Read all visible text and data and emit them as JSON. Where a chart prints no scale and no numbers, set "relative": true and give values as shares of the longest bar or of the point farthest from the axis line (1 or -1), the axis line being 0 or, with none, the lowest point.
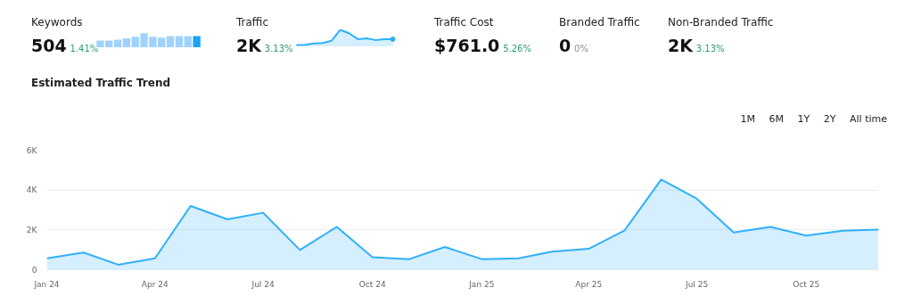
{
  "chart_data": [
    {
      "type": "other",
      "categories": [
        "Keywords",
        "Traffic",
        "Traffic Cost",
        "Branded Traffic",
        "Non-Branded Traffic"
      ],
      "value_labels": [
        "504",
        "2K",
        "$761.0",
        "0",
        "2K"
      ],
      "annotations": [
        "1.41%",
        "3.13%",
        "5.26%",
        "0%",
        "3.13%"
      ],
      "colors": [
        "#2a9d6f",
        "#2a9d6f",
        "#2a9d6f",
        "#8a8f98",
        "#2a9d6f"
      ]
    },
    {
      "type": "bar",
      "relative": true,
      "categories": [
        null,
        null,
        null,
        null,
        null,
        null,
        null,
        null,
        null,
        null,
        null,
        null
      ],
      "values": [
        0.5,
        0.5,
        0.55,
        0.65,
        0.75,
        1.0,
        0.75,
        0.7,
        0.8,
        0.8,
        0.8,
        0.8
      ],
      "colors": [
        "#9fd3fb",
        "#9fd3fb",
        "#9fd3fb",
        "#9fd3fb",
        "#9fd3fb",
        "#9fd3fb",
        "#9fd3fb",
        "#9fd3fb",
        "#9fd3fb",
        "#9fd3fb",
        "#9fd3fb",
        "#1aa3f5"
      ]
    },
    {
      "type": "area",
      "relative": true,
      "categories": [
        null,
        null,
        null,
        null,
        null,
        null,
        null,
        null,
        null,
        null,
        null,
        null
      ],
      "values": [
        0.1,
        0.12,
        0.2,
        0.22,
        0.35,
        1.0,
        0.8,
        0.45,
        0.5,
        0.4,
        0.45,
        0.45
      ],
      "color": "#2fb0fb"
    },
    {
      "type": "area",
      "title": "Estimated Traffic Trend",
      "annotations": [
        "1M",
        "6M",
        "1Y",
        "2Y",
        "All time"
      ],
      "x": [
        "2024-01",
        "2024-02",
        "2024-03",
        "2024-04",
        "2024-05",
        "2024-06",
        "2024-07",
        "2024-08",
        "2024-09",
        "2024-10",
        "2024-11",
        "2024-12",
        "2025-01",
        "2025-02",
        "2025-03",
        "2025-04",
        "2025-05",
        "2025-06",
        "2025-07",
        "2025-08",
        "2025-09",
        "2025-10",
        "2025-11",
        "2025-12"
      ],
      "values": [
        570,
        860,
        250,
        570,
        3200,
        2530,
        2860,
        990,
        2150,
        630,
        530,
        1140,
        530,
        570,
        910,
        1050,
        1960,
        4530,
        3560,
        1870,
        2150,
        1710,
        1960,
        2020
      ],
      "color": "#2fb0fb",
      "xlim": [
        "2024-01",
        "2025-12"
      ],
      "xticks": [
        {
          "value": "2024-01",
          "label": "Jan 24"
        },
        {
          "value": "2024-04",
          "label": "Apr 24"
        },
        {
          "value": "2024-07",
          "label": "Jul 24"
        },
        {
          "value": "2024-10",
          "label": "Oct 24"
        },
        {
          "value": "2025-01",
          "label": "Jan 25"
        },
        {
          "value": "2025-04",
          "label": "Apr 25"
        },
        {
          "value": "2025-07",
          "label": "Jul 25"
        },
        {
          "value": "2025-10",
          "label": "Oct 25"
        }
      ],
      "ylim": [
        0,
        6000
      ],
      "yticks": [
        0,
        {
          "value": 2000,
          "label": "2K"
        },
        {
          "value": 4000,
          "label": "4K"
        },
        {
          "value": 6000,
          "label": "6K"
        }
      ],
      "grid": "y"
    }
  ]
}
